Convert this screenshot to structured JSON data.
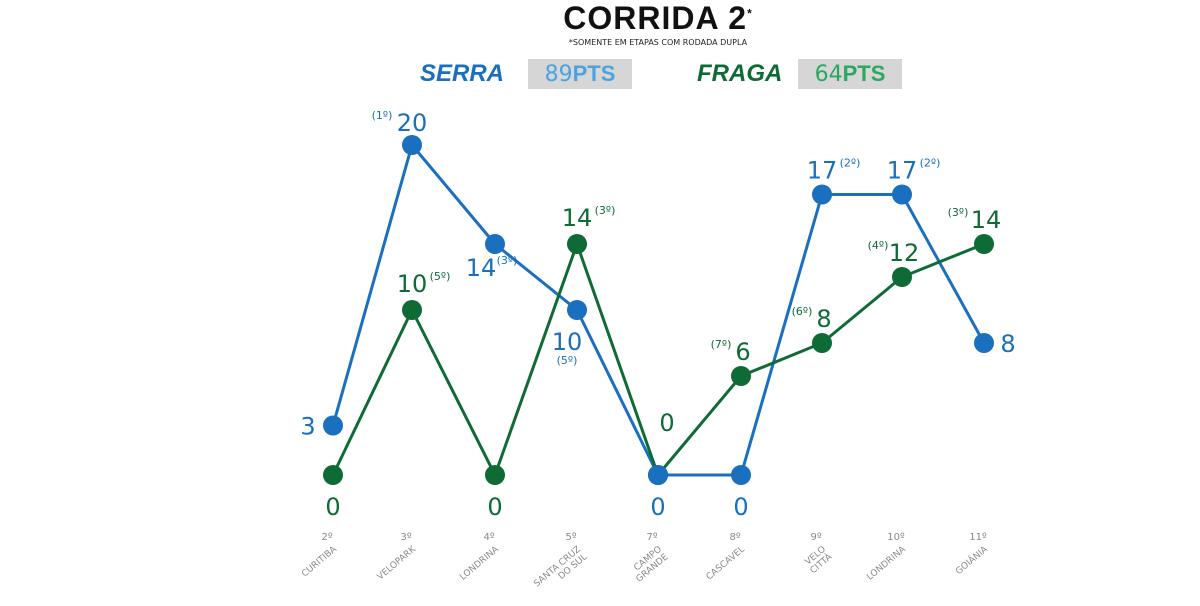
{
  "chart_data": {
    "type": "line",
    "title": "CORRIDA 2",
    "title_mark": "*",
    "subtitle": "*SOMENTE EM ETAPAS COM RODADA DUPLA",
    "categories": [
      {
        "round": "2º",
        "name": "CURITIBA"
      },
      {
        "round": "3º",
        "name": "VELOPARK"
      },
      {
        "round": "4º",
        "name": "LONDRINA"
      },
      {
        "round": "5º",
        "name": "SANTA CRUZ DO SUL"
      },
      {
        "round": "7º",
        "name": "CAMPO GRANDE"
      },
      {
        "round": "8º",
        "name": "CASCAVEL"
      },
      {
        "round": "9º",
        "name": "VELO CITTÀ"
      },
      {
        "round": "10º",
        "name": "LONDRINA"
      },
      {
        "round": "11º",
        "name": "GOIÂNIA"
      }
    ],
    "ylim": [
      0,
      20
    ],
    "series": [
      {
        "name": "SERRA",
        "total": "89",
        "total_unit": "PTS",
        "color": "#1a6fbf",
        "light_color": "#4aa3e0",
        "values": [
          3,
          20,
          14,
          10,
          0,
          0,
          17,
          17,
          8
        ],
        "positions": [
          "",
          "(1º)",
          "(3º)",
          "(5º)",
          "",
          "",
          "(2º)",
          "(2º)",
          ""
        ]
      },
      {
        "name": "FRAGA",
        "total": "64",
        "total_unit": "PTS",
        "color": "#0f6b35",
        "light_color": "#2aa861",
        "values": [
          0,
          10,
          0,
          14,
          0,
          6,
          8,
          12,
          14
        ],
        "positions": [
          "",
          "(5º)",
          "",
          "(3º)",
          "",
          "(7º)",
          "(6º)",
          "(4º)",
          "(3º)"
        ]
      }
    ]
  }
}
